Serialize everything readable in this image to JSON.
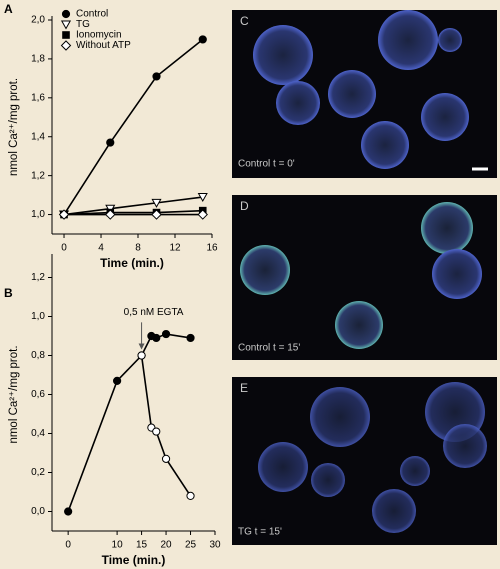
{
  "chart_data": [
    {
      "type": "line",
      "panel": "A",
      "ylabel": "nmol Ca²⁺/mg prot.",
      "xlabel": "Time (min.)",
      "xlim": [
        -1.3,
        16
      ],
      "ylim": [
        0.9,
        2.0
      ],
      "xticks": [
        0,
        4,
        8,
        12,
        16
      ],
      "yticks": [
        {
          "value": 1.0,
          "label": "1,0"
        },
        {
          "value": 1.2,
          "label": "1,2"
        },
        {
          "value": 1.4,
          "label": "1,4"
        },
        {
          "value": 1.6,
          "label": "1,6"
        },
        {
          "value": 1.8,
          "label": "1,8"
        },
        {
          "value": 2.0,
          "label": "2,0"
        }
      ],
      "legend": "upper left",
      "series": [
        {
          "name": "Control",
          "marker": "circle",
          "color": "#000000",
          "fill": "#000000",
          "x": [
            0,
            5,
            10,
            15
          ],
          "values": [
            1.0,
            1.37,
            1.71,
            1.9
          ]
        },
        {
          "name": "TG",
          "marker": "triangle-down",
          "color": "#000000",
          "fill": "#ffffff",
          "x": [
            0,
            5,
            10,
            15
          ],
          "values": [
            1.0,
            1.03,
            1.06,
            1.09
          ]
        },
        {
          "name": "Ionomycin",
          "marker": "square",
          "color": "#000000",
          "fill": "#000000",
          "x": [
            0,
            5,
            10,
            15
          ],
          "values": [
            1.0,
            1.01,
            1.01,
            1.02
          ]
        },
        {
          "name": "Without ATP",
          "marker": "diamond",
          "color": "#000000",
          "fill": "#ffffff",
          "x": [
            0,
            5,
            10,
            15
          ],
          "values": [
            1.0,
            1.0,
            1.0,
            1.0
          ]
        }
      ]
    },
    {
      "type": "line",
      "panel": "B",
      "ylabel": "nmol Ca²⁺/mg prot.",
      "xlabel": "Time (min.)",
      "xlim": [
        -3.3,
        30
      ],
      "ylim": [
        -0.1,
        1.3
      ],
      "xticks": [
        0,
        10,
        15,
        20,
        25,
        30
      ],
      "yticks": [
        {
          "value": 0.0,
          "label": "0,0"
        },
        {
          "value": 0.2,
          "label": "0,2"
        },
        {
          "value": 0.4,
          "label": "0,4"
        },
        {
          "value": 0.6,
          "label": "0,6"
        },
        {
          "value": 0.8,
          "label": "0,8"
        },
        {
          "value": 1.0,
          "label": "1,0"
        },
        {
          "value": 1.2,
          "label": "1,2"
        }
      ],
      "annotation": {
        "text": "0,5 nM EGTA",
        "x": 15,
        "y": 0.97
      },
      "series": [
        {
          "marker": "circle",
          "color": "#000000",
          "fill": "#000000",
          "x": [
            0,
            10,
            15,
            17,
            18,
            20,
            25
          ],
          "values": [
            0.0,
            0.67,
            0.8,
            0.9,
            0.89,
            0.91,
            0.89
          ]
        },
        {
          "marker": "circle",
          "color": "#000000",
          "fill": "#ffffff",
          "x": [
            15,
            17,
            18,
            20,
            25
          ],
          "values": [
            0.8,
            0.43,
            0.41,
            0.27,
            0.08
          ]
        }
      ]
    }
  ],
  "panels": [
    {
      "label": "C",
      "caption": "Control t = 0'"
    },
    {
      "label": "D",
      "caption": "Control t = 15'"
    },
    {
      "label": "E",
      "caption": "TG t = 15'"
    }
  ]
}
